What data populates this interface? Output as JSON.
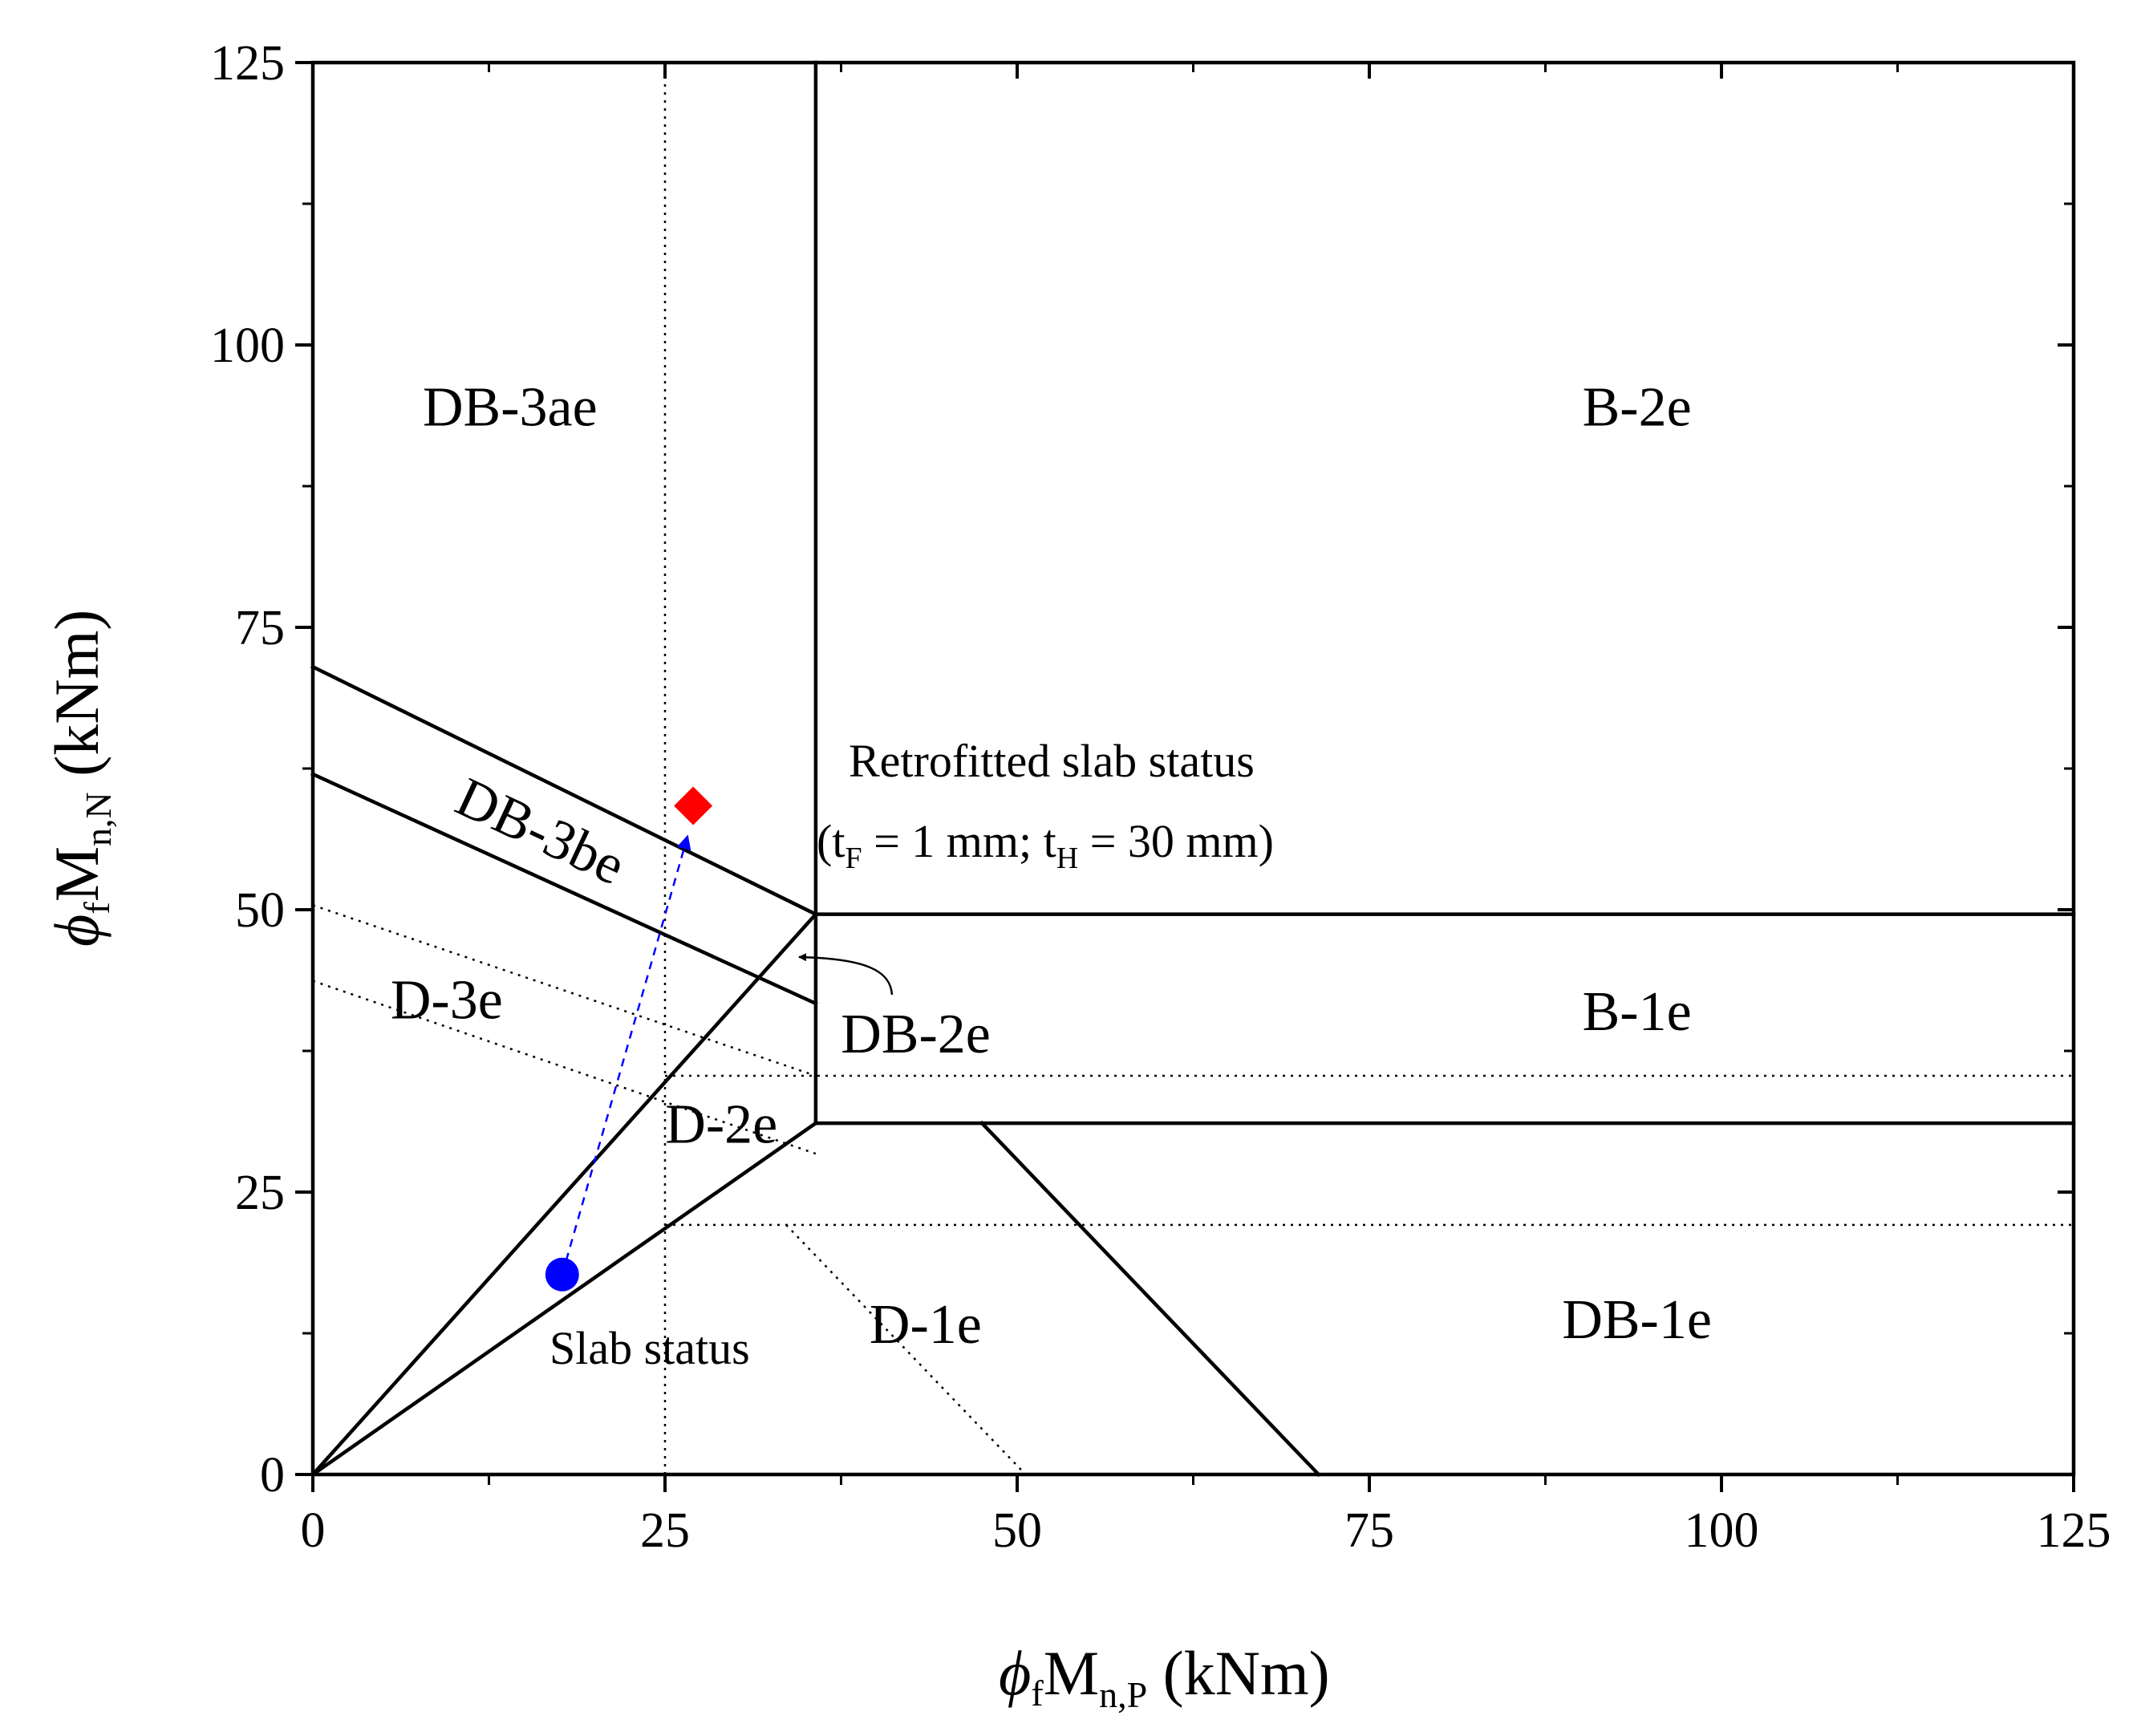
{
  "chart_data": {
    "type": "scatter",
    "xlabel": {
      "prefix": "M",
      "sub": "n,P",
      "suffix": " (kNm)",
      "phi": "ϕ",
      "phi_sub": "f"
    },
    "ylabel": {
      "prefix": "M",
      "sub": "n,N",
      "suffix": " (kNm)",
      "phi": "ϕ",
      "phi_sub": "f"
    },
    "xlim": [
      0,
      125
    ],
    "ylim": [
      0,
      125
    ],
    "x_ticks": [
      "0",
      "25",
      "50",
      "75",
      "100",
      "125"
    ],
    "y_ticks": [
      "0",
      "25",
      "50",
      "75",
      "100",
      "125"
    ],
    "grid": false,
    "boundaries_solid": [
      {
        "x": [
          35.7,
          35.7
        ],
        "y": [
          49.6,
          125
        ]
      },
      {
        "x": [
          35.7,
          125
        ],
        "y": [
          49.6,
          49.6
        ]
      },
      {
        "x": [
          35.7,
          125
        ],
        "y": [
          31.1,
          31.1
        ]
      },
      {
        "x": [
          35.7,
          35.7
        ],
        "y": [
          31.1,
          49.6
        ]
      },
      {
        "x": [
          0,
          35.7
        ],
        "y": [
          0,
          49.6
        ]
      },
      {
        "x": [
          0,
          35.7
        ],
        "y": [
          0,
          31.1
        ]
      },
      {
        "x": [
          0,
          35.7
        ],
        "y": [
          71.5,
          49.6
        ]
      },
      {
        "x": [
          0,
          35.7
        ],
        "y": [
          62.0,
          41.7
        ]
      },
      {
        "x": [
          47.5,
          71.4
        ],
        "y": [
          31.1,
          0
        ]
      }
    ],
    "boundaries_dotted": [
      {
        "x": [
          25,
          25
        ],
        "y": [
          0,
          125
        ]
      },
      {
        "x": [
          25,
          125
        ],
        "y": [
          22.1,
          22.1
        ]
      },
      {
        "x": [
          25,
          125
        ],
        "y": [
          35.3,
          35.3
        ]
      },
      {
        "x": [
          0,
          35.7
        ],
        "y": [
          50.4,
          35.3
        ]
      },
      {
        "x": [
          0,
          35.7
        ],
        "y": [
          43.7,
          28.4
        ]
      },
      {
        "x": [
          33.6,
          50.6
        ],
        "y": [
          22.1,
          0
        ]
      }
    ],
    "regions": [
      {
        "label": "DB-3ae",
        "x": 14,
        "y": 94
      },
      {
        "label": "B-2e",
        "x": 94,
        "y": 94
      },
      {
        "label": "DB-3be",
        "x": 16,
        "y": 56.5,
        "rotate": 25
      },
      {
        "label": "D-3e",
        "x": 9.5,
        "y": 41.5
      },
      {
        "label": "D-2e",
        "x": 29,
        "y": 30.5
      },
      {
        "label": "DB-2e",
        "x": 42.8,
        "y": 38.5
      },
      {
        "label": "B-1e",
        "x": 94,
        "y": 40.5
      },
      {
        "label": "D-1e",
        "x": 43.5,
        "y": 12.8
      },
      {
        "label": "DB-1e",
        "x": 94,
        "y": 13.2
      }
    ],
    "annotations": {
      "retrofitted_line1": "Retrofitted slab status",
      "retrofitted_line2_a": "(t",
      "retrofitted_line2_a_sub": "F",
      "retrofitted_line2_b": " = 1 mm; t",
      "retrofitted_line2_b_sub": "H",
      "retrofitted_line2_c": " = 30 mm)",
      "slab_status": "Slab status"
    },
    "points": [
      {
        "name": "Slab status",
        "x": 17.7,
        "y": 17.7,
        "marker": "circle",
        "color": "#0000ff"
      },
      {
        "name": "Retrofitted slab status",
        "x": 27.0,
        "y": 59.2,
        "marker": "diamond",
        "color": "#ff0000"
      }
    ],
    "trajectory": {
      "from": [
        17.7,
        17.7
      ],
      "to": [
        26.6,
        56.5
      ],
      "color": "#0000ff",
      "style": "dashed"
    }
  }
}
